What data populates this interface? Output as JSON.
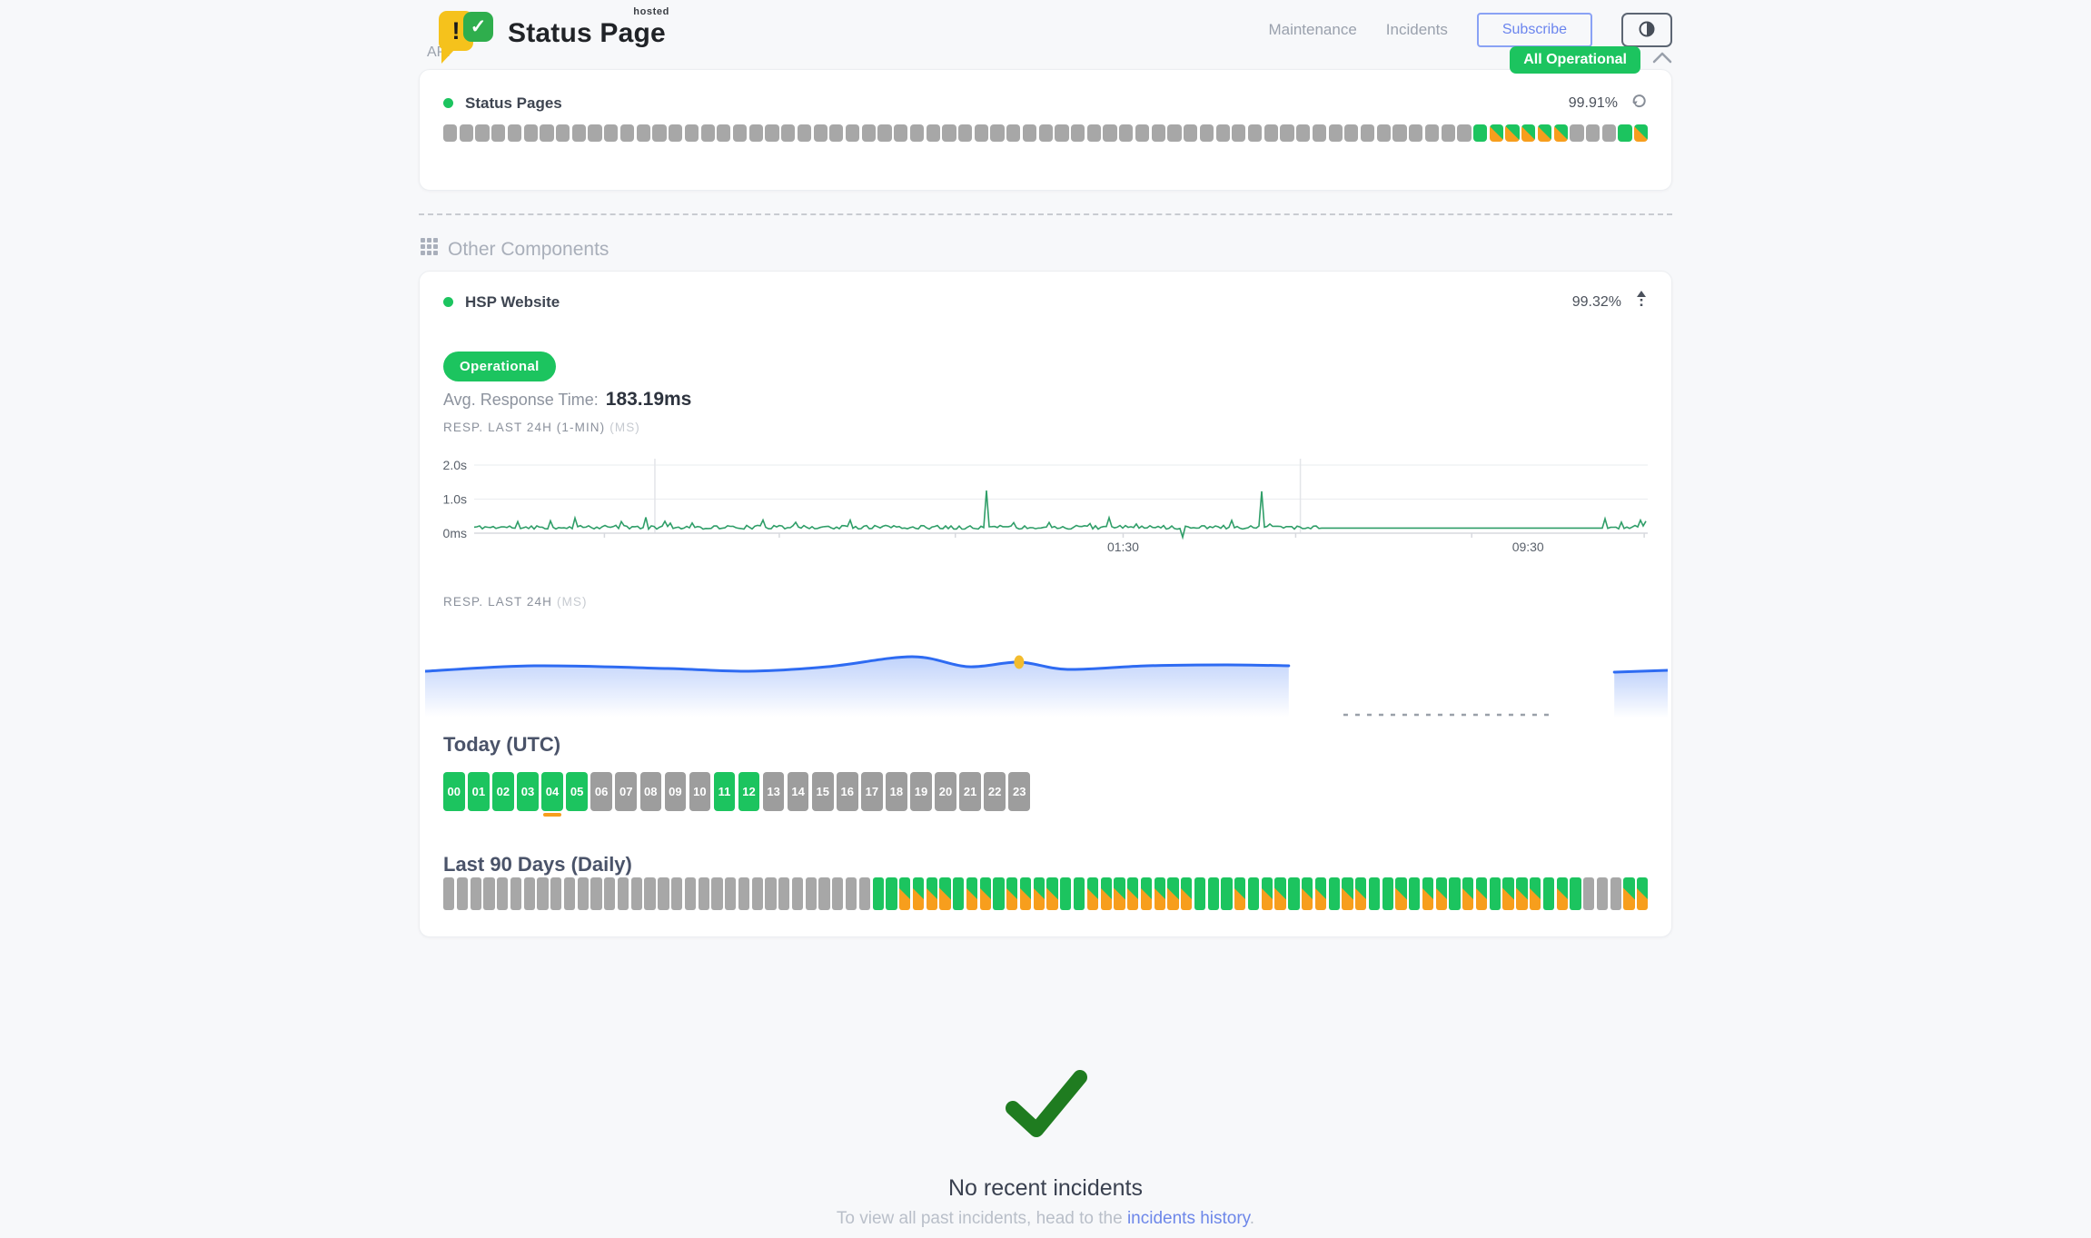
{
  "colors": {
    "green": "#1cc45f",
    "orange": "#f79e1d",
    "bar_gray": "#a7a7a7",
    "hour_gray": "#9d9d9d",
    "chart_green": "#2f9e68",
    "chart_blue": "#2e6bf2",
    "marker_yellow": "#f3bc2d",
    "check_green": "#1f7c20",
    "link_blue": "#6d87e9"
  },
  "header": {
    "logo": {
      "exclamation": "!",
      "check": "✓",
      "sup": "hosted",
      "brand": "Status Page"
    },
    "nav": [
      {
        "id": "maintenance",
        "label": "Maintenance"
      },
      {
        "id": "incidents",
        "label": "Incidents"
      }
    ],
    "subscribe_label": "Subscribe",
    "theme_toggle_icon": "half-circle",
    "overall_status": "All Operational"
  },
  "api_section": {
    "title": "API",
    "component": {
      "name": "Status Pages",
      "uptime": "99.91%",
      "bars_legend": {
        "n": "no-data",
        "u": "operational",
        "p": "partial-degraded"
      },
      "bars": [
        "n",
        "n",
        "n",
        "n",
        "n",
        "n",
        "n",
        "n",
        "n",
        "n",
        "n",
        "n",
        "n",
        "n",
        "n",
        "n",
        "n",
        "n",
        "n",
        "n",
        "n",
        "n",
        "n",
        "n",
        "n",
        "n",
        "n",
        "n",
        "n",
        "n",
        "n",
        "n",
        "n",
        "n",
        "n",
        "n",
        "n",
        "n",
        "n",
        "n",
        "n",
        "n",
        "n",
        "n",
        "n",
        "n",
        "n",
        "n",
        "n",
        "n",
        "n",
        "n",
        "n",
        "n",
        "n",
        "n",
        "n",
        "n",
        "n",
        "n",
        "n",
        "n",
        "n",
        "n",
        "u",
        "p",
        "p",
        "p",
        "p",
        "p",
        "n",
        "n",
        "n",
        "u",
        "p"
      ]
    }
  },
  "other_section": {
    "title": "Other Components",
    "component": {
      "name": "HSP Website",
      "uptime": "99.32%",
      "status_label": "Operational",
      "avg_response_label": "Avg. Response Time:",
      "avg_response_value": "183.19ms",
      "resp_1min_label": "RESP. LAST 24H (1-MIN)",
      "resp_1min_unit": "(MS)",
      "resp_24h_label": "RESP. LAST 24H",
      "resp_24h_unit": "(MS)",
      "today_title": "Today (UTC)",
      "hours": [
        {
          "label": "00",
          "state": "up"
        },
        {
          "label": "01",
          "state": "up"
        },
        {
          "label": "02",
          "state": "up"
        },
        {
          "label": "03",
          "state": "up"
        },
        {
          "label": "04",
          "state": "up",
          "marker": true
        },
        {
          "label": "05",
          "state": "up"
        },
        {
          "label": "06",
          "state": "none"
        },
        {
          "label": "07",
          "state": "none"
        },
        {
          "label": "08",
          "state": "none"
        },
        {
          "label": "09",
          "state": "none"
        },
        {
          "label": "10",
          "state": "none"
        },
        {
          "label": "11",
          "state": "up"
        },
        {
          "label": "12",
          "state": "up"
        },
        {
          "label": "13",
          "state": "none"
        },
        {
          "label": "14",
          "state": "none"
        },
        {
          "label": "15",
          "state": "none"
        },
        {
          "label": "16",
          "state": "none"
        },
        {
          "label": "17",
          "state": "none"
        },
        {
          "label": "18",
          "state": "none"
        },
        {
          "label": "19",
          "state": "none"
        },
        {
          "label": "20",
          "state": "none"
        },
        {
          "label": "21",
          "state": "none"
        },
        {
          "label": "22",
          "state": "none"
        },
        {
          "label": "23",
          "state": "none"
        }
      ],
      "daily_title": "Last 90 Days (Daily)",
      "daily_bars": [
        "n",
        "n",
        "n",
        "n",
        "n",
        "n",
        "n",
        "n",
        "n",
        "n",
        "n",
        "n",
        "n",
        "n",
        "n",
        "n",
        "n",
        "n",
        "n",
        "n",
        "n",
        "n",
        "n",
        "n",
        "n",
        "n",
        "n",
        "n",
        "n",
        "n",
        "n",
        "n",
        "u",
        "u",
        "p",
        "p",
        "p",
        "p",
        "u",
        "p",
        "p",
        "u",
        "p",
        "p",
        "p",
        "p",
        "u",
        "u",
        "p",
        "p",
        "p",
        "p",
        "p",
        "p",
        "p",
        "p",
        "u",
        "u",
        "u",
        "p",
        "u",
        "p",
        "p",
        "u",
        "p",
        "p",
        "u",
        "p",
        "p",
        "u",
        "u",
        "p",
        "u",
        "p",
        "p",
        "u",
        "p",
        "p",
        "u",
        "p",
        "p",
        "p",
        "u",
        "p",
        "u",
        "n",
        "n",
        "n",
        "p",
        "p"
      ]
    }
  },
  "incidents": {
    "title": "No recent incidents",
    "subtitle_prefix": "To view all past incidents, head to the ",
    "link_label": "incidents history",
    "subtitle_suffix": "."
  },
  "chart_data": [
    {
      "type": "line",
      "title": "RESP. LAST 24H (1-MIN) (MS)",
      "color": "#2f9e68",
      "ylim_ms": [
        0,
        2200
      ],
      "yticks": [
        {
          "label": "2.0s",
          "ms": 2000
        },
        {
          "label": "1.0s",
          "ms": 1000
        },
        {
          "label": "0ms",
          "ms": 0
        }
      ],
      "xticks": [
        {
          "label": "01:30",
          "f": 0.553
        },
        {
          "label": "09:30",
          "f": 0.898
        }
      ],
      "vgrid_f": [
        0.154,
        0.704
      ],
      "baseline_ms": 165,
      "noise_ms": 110,
      "spikes": [
        {
          "f": 0.437,
          "ms": 1250
        },
        {
          "f": 0.672,
          "ms": 1230
        }
      ],
      "dip": {
        "f": 0.604,
        "ms": -120
      },
      "flat": {
        "from_f": 0.722,
        "to_f": 0.963,
        "ms": 150
      }
    },
    {
      "type": "area",
      "title": "RESP. LAST 24H (MS)",
      "color": "#2e6bf2",
      "fill_top": "rgba(46,107,242,0.30)",
      "points_f_y": [
        [
          0,
          56
        ],
        [
          0.088,
          50
        ],
        [
          0.195,
          53
        ],
        [
          0.26,
          56
        ],
        [
          0.324,
          51
        ],
        [
          0.392,
          40
        ],
        [
          0.437,
          51
        ],
        [
          0.478,
          46
        ],
        [
          0.517,
          54
        ],
        [
          0.581,
          50
        ],
        [
          0.645,
          49
        ],
        [
          0.695,
          50
        ]
      ],
      "tail_points_f_y": [
        [
          0.957,
          57
        ],
        [
          1,
          55
        ]
      ],
      "gap_dash": {
        "from_f": 0.739,
        "to_f": 0.91,
        "y": 104
      },
      "marker": {
        "f": 0.478,
        "y": 46
      }
    }
  ]
}
